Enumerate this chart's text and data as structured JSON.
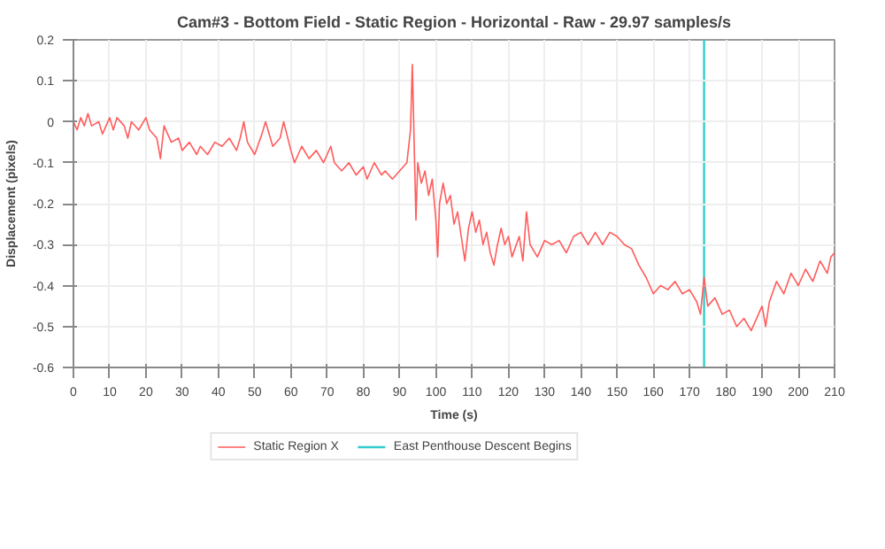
{
  "chart_data": {
    "type": "line",
    "title": "Cam#3 - Bottom Field - Static Region - Horizontal - Raw - 29.97 samples/s",
    "xlabel": "Time (s)",
    "ylabel": "Displacement (pixels)",
    "xlim": [
      0,
      210
    ],
    "xticks": [
      0,
      10,
      20,
      30,
      40,
      50,
      60,
      70,
      80,
      90,
      100,
      110,
      120,
      130,
      140,
      150,
      160,
      170,
      180,
      190,
      200,
      210
    ],
    "ylim": [
      -0.6,
      0.2
    ],
    "yticks": [
      -0.6,
      -0.5,
      -0.4,
      -0.3,
      -0.2,
      -0.1,
      0,
      0.1,
      0.2
    ],
    "grid": true,
    "legend": "bottom",
    "marker": "none",
    "line_style": "solid",
    "ref_lines": [
      {
        "axis": "x",
        "value": 174,
        "label": "East Penthouse Descent Begins",
        "color": "#33cccc"
      }
    ],
    "series": [
      {
        "name": "Static Region X",
        "color": "#ff5c5c",
        "x": [
          0,
          1,
          2,
          3,
          4,
          5,
          7,
          8,
          10,
          11,
          12,
          14,
          15,
          16,
          18,
          20,
          21,
          23,
          24,
          25,
          27,
          29,
          30,
          32,
          34,
          35,
          37,
          39,
          41,
          43,
          45,
          46,
          47,
          48,
          50,
          52,
          53,
          55,
          57,
          58,
          60,
          61,
          63,
          65,
          67,
          69,
          71,
          72,
          74,
          76,
          78,
          80,
          81,
          83,
          85,
          86,
          88,
          90,
          92,
          93,
          93.5,
          94,
          94.5,
          95,
          96,
          97,
          98,
          99,
          100,
          100.5,
          101,
          102,
          103,
          104,
          105,
          106,
          107,
          108,
          109,
          110,
          111,
          112,
          113,
          114,
          115,
          116,
          117,
          118,
          119,
          120,
          121,
          123,
          124,
          125,
          126,
          128,
          130,
          132,
          134,
          136,
          138,
          140,
          142,
          144,
          146,
          148,
          150,
          152,
          154,
          156,
          158,
          160,
          162,
          164,
          166,
          168,
          170,
          172,
          173,
          174,
          175,
          177,
          179,
          181,
          183,
          185,
          187,
          189,
          190,
          191,
          192,
          194,
          196,
          198,
          200,
          202,
          204,
          206,
          208,
          209,
          210
        ],
        "values": [
          0,
          -0.02,
          0.01,
          -0.01,
          0.02,
          -0.01,
          0,
          -0.03,
          0.01,
          -0.02,
          0.01,
          -0.01,
          -0.04,
          0,
          -0.02,
          0.01,
          -0.02,
          -0.04,
          -0.09,
          -0.01,
          -0.05,
          -0.04,
          -0.07,
          -0.05,
          -0.08,
          -0.06,
          -0.08,
          -0.05,
          -0.06,
          -0.04,
          -0.07,
          -0.04,
          0.0,
          -0.05,
          -0.08,
          -0.03,
          0.0,
          -0.06,
          -0.04,
          0.0,
          -0.07,
          -0.1,
          -0.06,
          -0.09,
          -0.07,
          -0.1,
          -0.06,
          -0.1,
          -0.12,
          -0.1,
          -0.13,
          -0.11,
          -0.14,
          -0.1,
          -0.13,
          -0.12,
          -0.14,
          -0.12,
          -0.1,
          -0.02,
          0.14,
          -0.05,
          -0.24,
          -0.1,
          -0.15,
          -0.12,
          -0.18,
          -0.14,
          -0.24,
          -0.33,
          -0.2,
          -0.15,
          -0.2,
          -0.18,
          -0.25,
          -0.22,
          -0.28,
          -0.34,
          -0.26,
          -0.22,
          -0.27,
          -0.24,
          -0.3,
          -0.27,
          -0.32,
          -0.35,
          -0.3,
          -0.26,
          -0.3,
          -0.28,
          -0.33,
          -0.28,
          -0.34,
          -0.22,
          -0.3,
          -0.33,
          -0.29,
          -0.3,
          -0.29,
          -0.32,
          -0.28,
          -0.27,
          -0.3,
          -0.27,
          -0.3,
          -0.27,
          -0.28,
          -0.3,
          -0.31,
          -0.35,
          -0.38,
          -0.42,
          -0.4,
          -0.41,
          -0.39,
          -0.42,
          -0.41,
          -0.44,
          -0.47,
          -0.38,
          -0.45,
          -0.43,
          -0.47,
          -0.46,
          -0.5,
          -0.48,
          -0.51,
          -0.47,
          -0.45,
          -0.5,
          -0.44,
          -0.39,
          -0.42,
          -0.37,
          -0.4,
          -0.36,
          -0.39,
          -0.34,
          -0.37,
          -0.33,
          -0.32
        ]
      }
    ]
  }
}
